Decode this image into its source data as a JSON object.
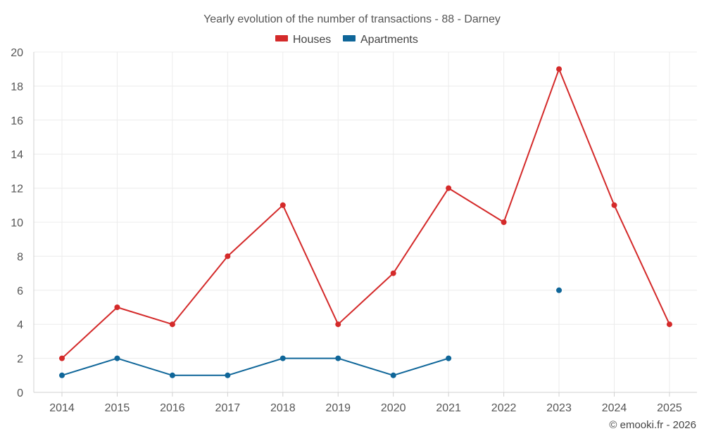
{
  "chart_data": {
    "type": "line",
    "title": "Yearly evolution of the number of transactions - 88 - Darney",
    "categories": [
      "2014",
      "2015",
      "2016",
      "2017",
      "2018",
      "2019",
      "2020",
      "2021",
      "2022",
      "2023",
      "2024",
      "2025"
    ],
    "series": [
      {
        "name": "Houses",
        "color": "#d42a2a",
        "values": [
          2,
          5,
          4,
          8,
          11,
          4,
          7,
          12,
          10,
          19,
          11,
          4
        ]
      },
      {
        "name": "Apartments",
        "color": "#0f6699",
        "values": [
          1,
          2,
          1,
          1,
          2,
          2,
          1,
          2,
          null,
          6,
          null,
          null
        ]
      }
    ],
    "ylim": [
      0,
      20
    ],
    "yticks": [
      0,
      2,
      4,
      6,
      8,
      10,
      12,
      14,
      16,
      18,
      20
    ],
    "xlabel": "",
    "ylabel": "",
    "grid": true,
    "legend": "top-center",
    "credit": "© emooki.fr - 2026"
  }
}
